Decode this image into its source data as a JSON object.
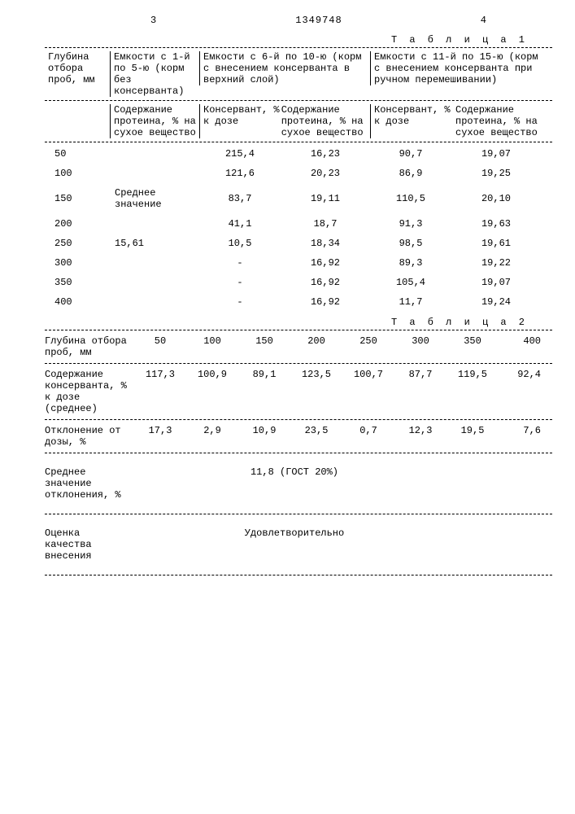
{
  "pageTop": {
    "leftNum": "3",
    "patentNo": "1349748",
    "rightNum": "4"
  },
  "table1": {
    "caption": "Т а б л и ц а   1",
    "head": {
      "depth": "Глубина отбора проб, мм",
      "g1": "Емкости с 1-й по 5-ю (корм без консерванта)",
      "g2": "Емкости с 6-й по 10-ю (корм с внесением консерванта в верхний слой)",
      "g3": "Емкости с 11-й по 15-ю (корм с внесением консерванта при ручном перемешивании)",
      "sub_prot": "Содержание протеина, % на сухое вещество",
      "sub_cons": "Консервант, % к дозе"
    },
    "rows": [
      {
        "d": "50",
        "p1": "",
        "c2": "215,4",
        "p2": "16,23",
        "c3": "90,7",
        "p3": "19,07"
      },
      {
        "d": "100",
        "p1": "",
        "c2": "121,6",
        "p2": "20,23",
        "c3": "86,9",
        "p3": "19,25"
      },
      {
        "d": "150",
        "p1": "Среднее значение",
        "c2": "83,7",
        "p2": "19,11",
        "c3": "110,5",
        "p3": "20,10"
      },
      {
        "d": "200",
        "p1": "",
        "c2": "41,1",
        "p2": "18,7",
        "c3": "91,3",
        "p3": "19,63"
      },
      {
        "d": "250",
        "p1": "15,61",
        "c2": "10,5",
        "p2": "18,34",
        "c3": "98,5",
        "p3": "19,61"
      },
      {
        "d": "300",
        "p1": "",
        "c2": "-",
        "p2": "16,92",
        "c3": "89,3",
        "p3": "19,22"
      },
      {
        "d": "350",
        "p1": "",
        "c2": "-",
        "p2": "16,92",
        "c3": "105,4",
        "p3": "19,07"
      },
      {
        "d": "400",
        "p1": "",
        "c2": "-",
        "p2": "16,92",
        "c3": "11,7",
        "p3": "19,24"
      }
    ]
  },
  "table2": {
    "caption": "Т а б л и ц а   2",
    "cols": [
      "50",
      "100",
      "150",
      "200",
      "250",
      "300",
      "350",
      "400"
    ],
    "rows": {
      "depthLabel": "Глубина отбора проб, мм",
      "r1": {
        "label": "Содержание консерванта, % к дозе (среднее)",
        "vals": [
          "117,3",
          "100,9",
          "89,1",
          "123,5",
          "100,7",
          "87,7",
          "119,5",
          "92,4"
        ]
      },
      "r2": {
        "label": "Отклонение от дозы, %",
        "vals": [
          "17,3",
          "2,9",
          "10,9",
          "23,5",
          "0,7",
          "12,3",
          "19,5",
          "7,6"
        ]
      },
      "avg": {
        "label": "Среднее значение отклонения, %",
        "value": "11,8 (ГОСТ 20%)"
      },
      "qual": {
        "label": "Оценка качества внесения",
        "value": "Удовлетворительно"
      }
    }
  }
}
